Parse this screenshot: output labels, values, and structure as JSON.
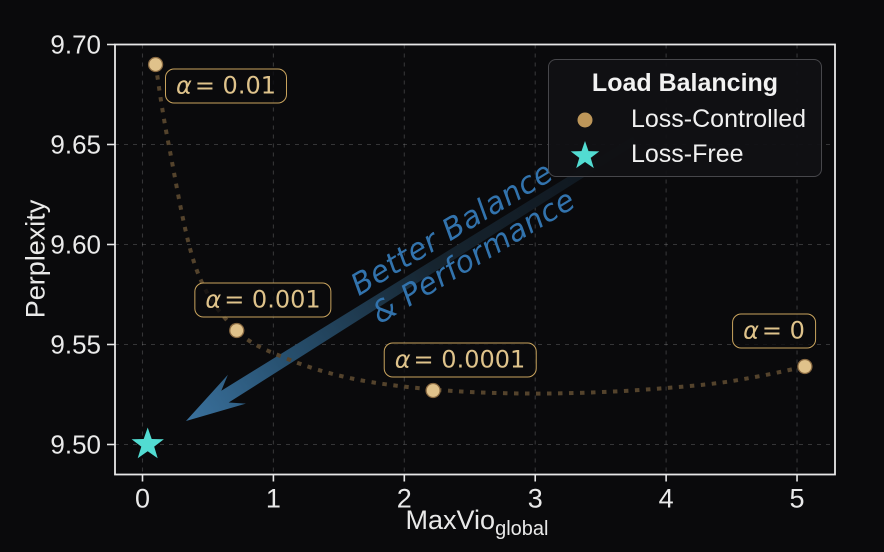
{
  "figure": {
    "background": "#0a0a0c"
  },
  "theme": {
    "spine_color": "#e8e8e8",
    "tick_label_color": "#eaeaea",
    "grid_color": "#9a9a9a",
    "point_edge_color": "#8a6a42",
    "label_box_border": "#c9a45e",
    "label_box_text": "#dfc38b",
    "arrow_tail_color": "#0e141b",
    "arrow_mid_color": "#16242f",
    "arrow_head_color": "#3a719d"
  },
  "chart_data": {
    "type": "scatter",
    "title": "",
    "xlabel": "MaxVio",
    "xlabel_sub": "global",
    "ylabel": "Perplexity",
    "xlim": [
      -0.21,
      5.29
    ],
    "ylim": [
      9.485,
      9.7
    ],
    "xticks": [
      "0",
      "1",
      "2",
      "3",
      "4",
      "5"
    ],
    "yticks": [
      "9.50",
      "9.55",
      "9.60",
      "9.65",
      "9.70"
    ],
    "grid": true,
    "series": [
      {
        "name": "Loss-Controlled",
        "marker": "circle",
        "color": "#e0c28b",
        "points": [
          {
            "x": 0.1,
            "y": 9.69,
            "alpha": "0.01"
          },
          {
            "x": 0.72,
            "y": 9.557,
            "alpha": "0.001"
          },
          {
            "x": 2.22,
            "y": 9.527,
            "alpha": "0.0001"
          },
          {
            "x": 5.06,
            "y": 9.539,
            "alpha": "0"
          }
        ]
      },
      {
        "name": "Loss-Free",
        "marker": "star",
        "color": "#52dcd2",
        "points": [
          {
            "x": 0.04,
            "y": 9.5
          }
        ]
      }
    ],
    "trend_curve": {
      "color": "#54432c",
      "style": "dotted",
      "points": [
        [
          0.1,
          9.69
        ],
        [
          0.2,
          9.65
        ],
        [
          0.41,
          9.588
        ],
        [
          0.72,
          9.557
        ],
        [
          1.1,
          9.543
        ],
        [
          1.6,
          9.533
        ],
        [
          2.22,
          9.5275
        ],
        [
          2.9,
          9.5255
        ],
        [
          3.6,
          9.5265
        ],
        [
          4.3,
          9.53
        ],
        [
          4.7,
          9.534
        ],
        [
          5.06,
          9.539
        ]
      ]
    },
    "annotations": [
      {
        "sym": "α",
        "val": "= 0.01"
      },
      {
        "sym": "α",
        "val": "= 0.001"
      },
      {
        "sym": "α",
        "val": "= 0.0001"
      },
      {
        "sym": "α",
        "val": "= 0"
      }
    ],
    "arrow_text": {
      "line1": "Better Balance",
      "line2": "& Performance",
      "color": "#3273ad"
    },
    "legend": {
      "title": "Load Balancing",
      "position": "upper right",
      "items": [
        {
          "label": "Loss-Controlled",
          "marker": "circle",
          "color": "#bd9659"
        },
        {
          "label": "Loss-Free",
          "marker": "star",
          "color": "#52dcd2"
        }
      ]
    }
  }
}
